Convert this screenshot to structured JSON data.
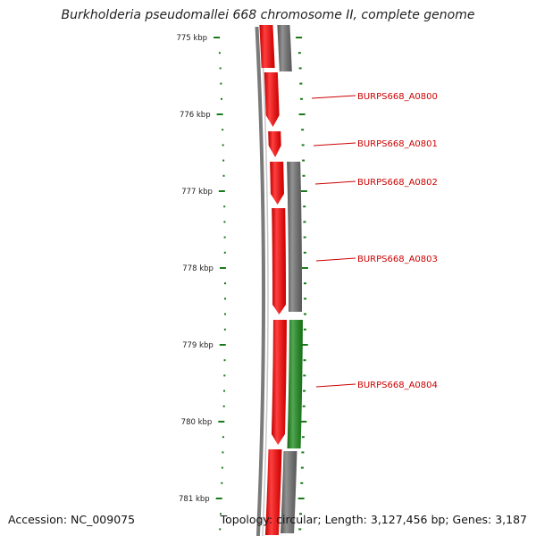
{
  "title": "Burkholderia pseudomallei 668 chromosome II, complete genome",
  "accession_text": "Accession: NC_009075",
  "summary_text": "Topology: circular; Length: 3,127,456 bp; Genes: 3,187",
  "colors": {
    "backbone": "#7a7a7a",
    "cds": "#ff0000",
    "cds_dark": "#b80000",
    "gray_feature": "#6e6e6e",
    "green_feature": "#1a8a1a",
    "tick": "#1a7a1a",
    "label": "#cc0000"
  },
  "scale": {
    "ticks": [
      {
        "label": "775 kbp",
        "kbp": 775
      },
      {
        "label": "776 kbp",
        "kbp": 776
      },
      {
        "label": "777 kbp",
        "kbp": 777
      },
      {
        "label": "778 kbp",
        "kbp": 778
      },
      {
        "label": "779 kbp",
        "kbp": 779
      },
      {
        "label": "780 kbp",
        "kbp": 780
      },
      {
        "label": "781 kbp",
        "kbp": 781
      }
    ]
  },
  "genes": [
    {
      "name": "BURPS668_A0800"
    },
    {
      "name": "BURPS668_A0801"
    },
    {
      "name": "BURPS668_A0802"
    },
    {
      "name": "BURPS668_A0803"
    },
    {
      "name": "BURPS668_A0804"
    }
  ]
}
